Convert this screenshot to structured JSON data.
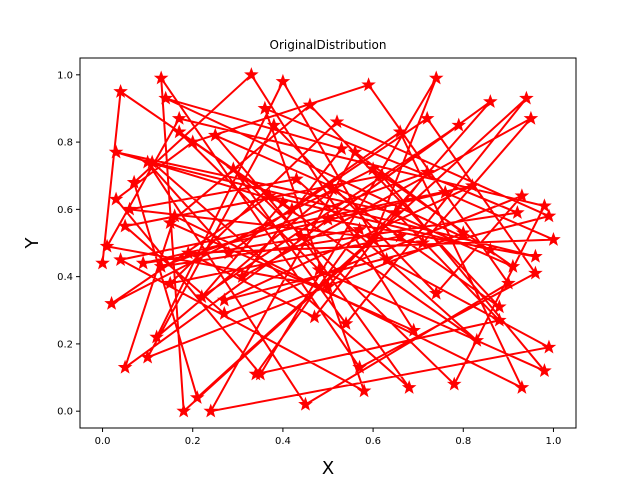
{
  "chart_data": {
    "type": "line",
    "title": "OriginalDistribution",
    "xlabel": "X",
    "ylabel": "Y",
    "xlim": [
      -0.05,
      1.05
    ],
    "ylim": [
      -0.05,
      1.05
    ],
    "xticks": [
      "0.0",
      "0.2",
      "0.4",
      "0.6",
      "0.8",
      "1.0"
    ],
    "yticks": [
      "0.0",
      "0.2",
      "0.4",
      "0.6",
      "0.8",
      "1.0"
    ],
    "grid": false,
    "line_color": "#ff0000",
    "marker": "star",
    "x": [
      0.0,
      0.04,
      0.42,
      0.72,
      0.96,
      0.57,
      0.13,
      0.18,
      0.6,
      0.74,
      0.35,
      0.03,
      0.2,
      0.59,
      0.9,
      0.45,
      0.1,
      0.28,
      0.66,
      0.93,
      0.16,
      0.05,
      0.86,
      0.5,
      0.01,
      0.17,
      0.98,
      0.78,
      0.29,
      0.54,
      0.94,
      0.21,
      0.07,
      0.33,
      0.69,
      0.15,
      0.46,
      0.88,
      0.51,
      0.12,
      0.4,
      0.63,
      0.99,
      0.24,
      0.56,
      0.8,
      0.1,
      0.38,
      0.74,
      0.93,
      0.27,
      0.05,
      0.62,
      0.98,
      0.48,
      0.17,
      0.83,
      0.43,
      0.06,
      0.71,
      0.95,
      0.31,
      0.53,
      0.14,
      0.86,
      0.37,
      0.02,
      0.6,
      0.91,
      0.25,
      0.44,
      0.68,
      0.11,
      0.96,
      0.5,
      0.79,
      0.22,
      0.4,
      0.03,
      0.65,
      0.88,
      0.34,
      0.57,
      0.09,
      0.76,
      1.0,
      0.19,
      0.47,
      0.72,
      0.13,
      0.92,
      0.36,
      0.58,
      0.04,
      0.82,
      0.27,
      0.99,
      0.52,
      0.15,
      0.66
    ],
    "y": [
      0.44,
      0.95,
      0.6,
      0.87,
      0.41,
      0.13,
      0.99,
      0.0,
      0.51,
      0.99,
      0.11,
      0.63,
      0.8,
      0.97,
      0.38,
      0.02,
      0.74,
      0.47,
      0.83,
      0.07,
      0.58,
      0.13,
      0.92,
      0.37,
      0.49,
      0.87,
      0.61,
      0.08,
      0.72,
      0.26,
      0.93,
      0.04,
      0.68,
      1.0,
      0.24,
      0.56,
      0.91,
      0.31,
      0.66,
      0.22,
      0.98,
      0.45,
      0.19,
      0.0,
      0.77,
      0.53,
      0.16,
      0.85,
      0.35,
      0.64,
      0.29,
      0.55,
      0.7,
      0.12,
      0.42,
      0.83,
      0.21,
      0.69,
      0.6,
      0.5,
      0.87,
      0.4,
      0.78,
      0.93,
      0.48,
      0.64,
      0.32,
      0.72,
      0.43,
      0.82,
      0.52,
      0.07,
      0.74,
      0.46,
      0.57,
      0.85,
      0.34,
      0.62,
      0.77,
      0.59,
      0.27,
      0.11,
      0.54,
      0.44,
      0.65,
      0.51,
      0.47,
      0.28,
      0.71,
      0.43,
      0.59,
      0.9,
      0.06,
      0.45,
      0.67,
      0.33,
      0.58,
      0.86,
      0.38,
      0.52
    ]
  }
}
